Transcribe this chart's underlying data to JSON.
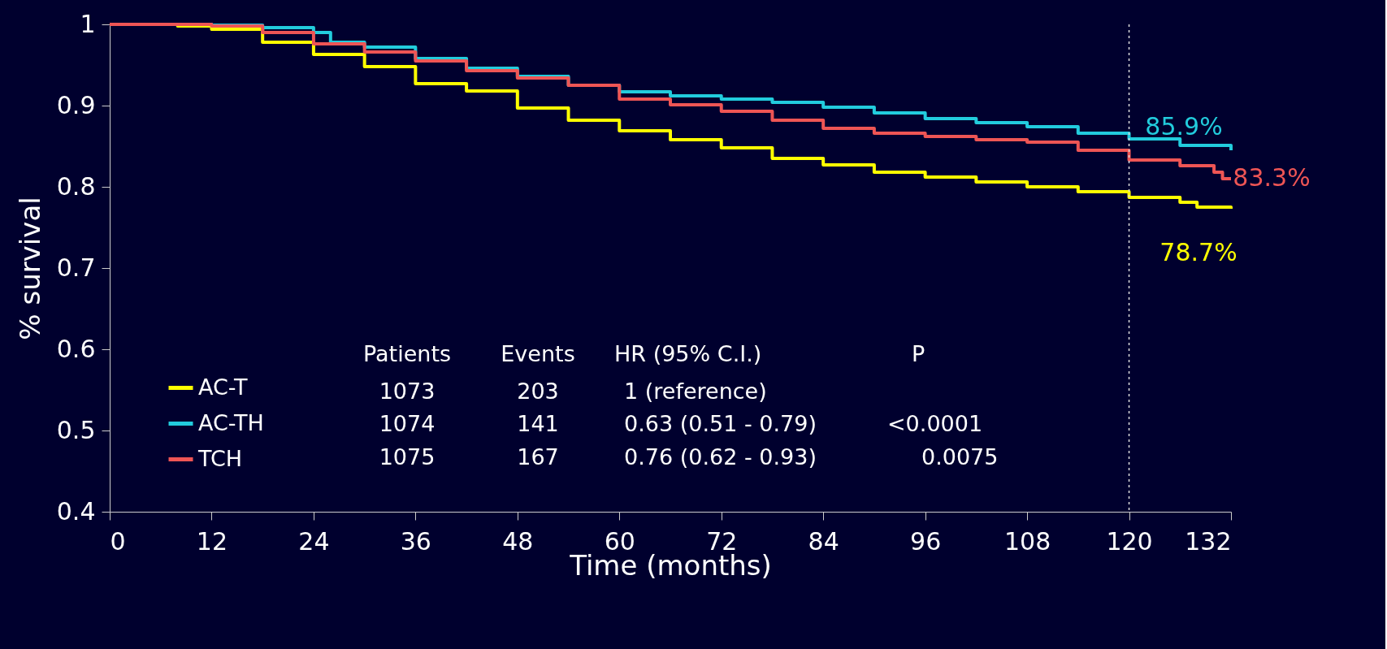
{
  "chart_data": {
    "type": "step",
    "xlabel": "Time (months)",
    "ylabel": "% survival",
    "xlim": [
      0,
      132
    ],
    "xticks": [
      0,
      12,
      24,
      36,
      48,
      60,
      72,
      84,
      96,
      108,
      120,
      132
    ],
    "ylim": [
      0.4,
      1
    ],
    "yticks": [
      0.4,
      0.5,
      0.6,
      0.7,
      0.8,
      0.9,
      1
    ],
    "grid": false,
    "legend": "bottom left",
    "series": [
      {
        "name": "AC-T",
        "color": "#ffff00",
        "x": [
          0,
          8,
          12,
          18,
          24,
          30,
          36,
          42,
          48,
          54,
          60,
          66,
          72,
          78,
          84,
          90,
          96,
          102,
          108,
          114,
          120,
          126,
          128,
          132
        ],
        "values": [
          1,
          0.998,
          0.994,
          0.978,
          0.963,
          0.948,
          0.927,
          0.918,
          0.897,
          0.882,
          0.869,
          0.858,
          0.848,
          0.835,
          0.827,
          0.818,
          0.812,
          0.806,
          0.8,
          0.794,
          0.787,
          0.781,
          0.775,
          0.773
        ]
      },
      {
        "name": "AC-TH",
        "color": "#22ccdd",
        "x": [
          0,
          12,
          18,
          24,
          26,
          30,
          36,
          42,
          48,
          54,
          60,
          66,
          72,
          78,
          84,
          90,
          96,
          102,
          108,
          114,
          120,
          126,
          132
        ],
        "values": [
          1,
          0.999,
          0.996,
          0.99,
          0.978,
          0.972,
          0.958,
          0.946,
          0.936,
          0.925,
          0.917,
          0.912,
          0.908,
          0.904,
          0.898,
          0.891,
          0.884,
          0.879,
          0.874,
          0.866,
          0.859,
          0.851,
          0.845
        ]
      },
      {
        "name": "TCH",
        "color": "#ee5555",
        "x": [
          0,
          12,
          18,
          24,
          30,
          36,
          42,
          48,
          54,
          60,
          66,
          72,
          78,
          84,
          90,
          96,
          102,
          108,
          114,
          120,
          126,
          130,
          131,
          132
        ],
        "values": [
          1,
          0.998,
          0.99,
          0.976,
          0.966,
          0.955,
          0.943,
          0.934,
          0.925,
          0.908,
          0.901,
          0.893,
          0.882,
          0.872,
          0.866,
          0.862,
          0.858,
          0.855,
          0.845,
          0.833,
          0.826,
          0.818,
          0.81,
          0.81
        ]
      }
    ],
    "ref_lines": [
      {
        "axis": "x",
        "value": 120,
        "color": "#dddddd",
        "line_style": "dotted"
      }
    ],
    "annotations": [
      "78.7%",
      "85.9%",
      "83.3%",
      "Patients",
      "Events",
      "HR (95% C.I.)",
      "P",
      "1073",
      "203",
      "1 (reference)",
      "1074",
      "141",
      "0.63 (0.51 - 0.79)",
      "<0.0001",
      "1075",
      "167",
      "0.76 (0.62 - 0.93)",
      "0.0075"
    ]
  }
}
